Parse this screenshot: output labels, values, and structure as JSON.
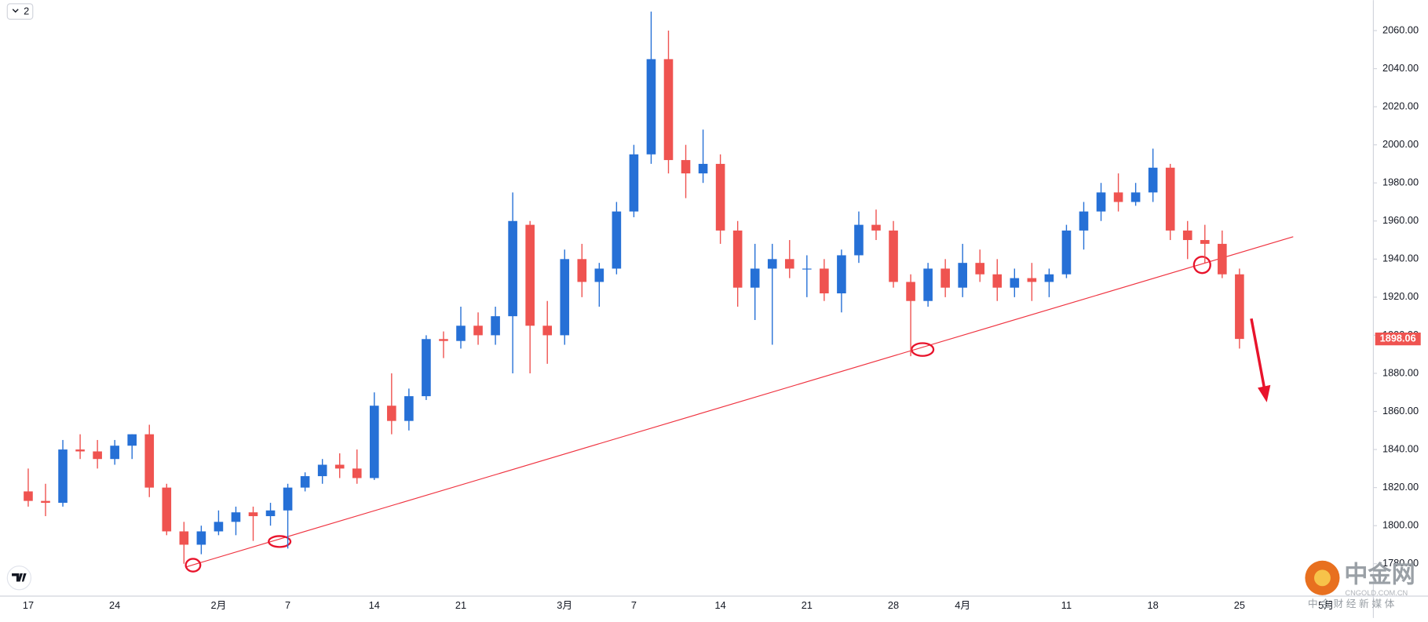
{
  "chart_data": {
    "type": "candlestick",
    "toolbar_count": "2",
    "categories": [
      "17",
      null,
      null,
      null,
      null,
      "24",
      null,
      null,
      null,
      null,
      null,
      "2月",
      null,
      null,
      null,
      "7",
      null,
      null,
      null,
      null,
      "14",
      null,
      null,
      null,
      null,
      "21",
      null,
      null,
      null,
      null,
      null,
      "3月",
      null,
      null,
      null,
      "7",
      null,
      null,
      null,
      null,
      "14",
      null,
      null,
      null,
      null,
      "21",
      null,
      null,
      null,
      null,
      "28",
      null,
      null,
      null,
      "4月",
      null,
      null,
      null,
      null,
      null,
      "11",
      null,
      null,
      null,
      null,
      "18",
      null,
      null,
      null,
      null,
      "25",
      null,
      null,
      null,
      null,
      "5月"
    ],
    "open": [
      1818,
      1813,
      1812,
      1840,
      1839,
      1835,
      1842,
      1848,
      1820,
      1797,
      1790,
      1797,
      1802,
      1807,
      1805,
      1808,
      1820,
      1826,
      1832,
      1830,
      1825,
      1863,
      1855,
      1868,
      1898,
      1897,
      1905,
      1900,
      1910,
      1958,
      1905,
      1900,
      1940,
      1928,
      1935,
      1965,
      1995,
      2045,
      1992,
      1985,
      1990,
      1955,
      1925,
      1935,
      1940,
      1935,
      1935,
      1922,
      1942,
      1958,
      1955,
      1928,
      1918,
      1935,
      1925,
      1938,
      1932,
      1925,
      1930,
      1928,
      1932,
      1955,
      1965,
      1975,
      1970,
      1975,
      1988,
      1955,
      1950,
      1948,
      1932,
      null,
      null,
      null,
      null,
      null
    ],
    "high": [
      1830,
      1822,
      1845,
      1848,
      1845,
      1845,
      1848,
      1853,
      1822,
      1802,
      1800,
      1808,
      1810,
      1810,
      1812,
      1822,
      1828,
      1835,
      1838,
      1840,
      1870,
      1880,
      1872,
      1900,
      1902,
      1915,
      1912,
      1915,
      1975,
      1960,
      1918,
      1945,
      1948,
      1938,
      1970,
      2000,
      2070,
      2060,
      2000,
      2008,
      1995,
      1960,
      1948,
      1948,
      1950,
      1942,
      1940,
      1945,
      1965,
      1966,
      1960,
      1932,
      1938,
      1940,
      1948,
      1945,
      1940,
      1935,
      1938,
      1935,
      1958,
      1970,
      1980,
      1985,
      1980,
      1998,
      1990,
      1960,
      1958,
      1955,
      1935,
      null,
      null,
      null,
      null,
      null
    ],
    "low": [
      1810,
      1805,
      1810,
      1835,
      1830,
      1832,
      1835,
      1815,
      1795,
      1780,
      1785,
      1795,
      1795,
      1792,
      1800,
      1788,
      1818,
      1822,
      1825,
      1822,
      1824,
      1848,
      1850,
      1866,
      1888,
      1893,
      1895,
      1895,
      1880,
      1880,
      1885,
      1895,
      1920,
      1915,
      1932,
      1962,
      1990,
      1985,
      1972,
      1980,
      1948,
      1915,
      1908,
      1895,
      1930,
      1920,
      1918,
      1912,
      1938,
      1950,
      1925,
      1889,
      1915,
      1920,
      1920,
      1928,
      1918,
      1920,
      1918,
      1920,
      1930,
      1945,
      1960,
      1965,
      1968,
      1970,
      1950,
      1940,
      1938,
      1930,
      1893,
      null,
      null,
      null,
      null,
      null
    ],
    "close": [
      1813,
      1812,
      1840,
      1839,
      1835,
      1842,
      1848,
      1820,
      1797,
      1790,
      1797,
      1802,
      1807,
      1805,
      1808,
      1820,
      1826,
      1832,
      1830,
      1825,
      1863,
      1855,
      1868,
      1898,
      1897,
      1905,
      1900,
      1910,
      1960,
      1905,
      1900,
      1940,
      1928,
      1935,
      1965,
      1995,
      2045,
      1992,
      1985,
      1990,
      1955,
      1925,
      1935,
      1940,
      1935,
      1935,
      1922,
      1942,
      1958,
      1955,
      1928,
      1918,
      1935,
      1925,
      1938,
      1932,
      1925,
      1930,
      1928,
      1932,
      1955,
      1965,
      1975,
      1970,
      1975,
      1988,
      1955,
      1950,
      1948,
      1932,
      1898.06,
      null,
      null,
      null,
      null,
      null
    ],
    "up_color": "#2670d6",
    "down_color": "#ef5350",
    "last_price": 1898.06,
    "ylim": [
      1763,
      2076
    ],
    "yticks": [
      {
        "value": 1780,
        "label": "1780.00"
      },
      {
        "value": 1800,
        "label": "1800.00"
      },
      {
        "value": 1820,
        "label": "1820.00"
      },
      {
        "value": 1840,
        "label": "1840.00"
      },
      {
        "value": 1860,
        "label": "1860.00"
      },
      {
        "value": 1880,
        "label": "1880.00"
      },
      {
        "value": 1900,
        "label": "1900.00"
      },
      {
        "value": 1920,
        "label": "1920.00"
      },
      {
        "value": 1940,
        "label": "1940.00"
      },
      {
        "value": 1960,
        "label": "1960.00"
      },
      {
        "value": 1980,
        "label": "1980.00"
      },
      {
        "value": 2000,
        "label": "2000.00"
      },
      {
        "value": 2020,
        "label": "2020.00"
      },
      {
        "value": 2040,
        "label": "2040.00"
      },
      {
        "value": 2060,
        "label": "2060.00"
      }
    ],
    "grid": false,
    "watermark": {
      "name": "中金网",
      "site": "CNGOLD.COM.CN",
      "slogan": "中 金 财 经 新 媒 体"
    }
  }
}
